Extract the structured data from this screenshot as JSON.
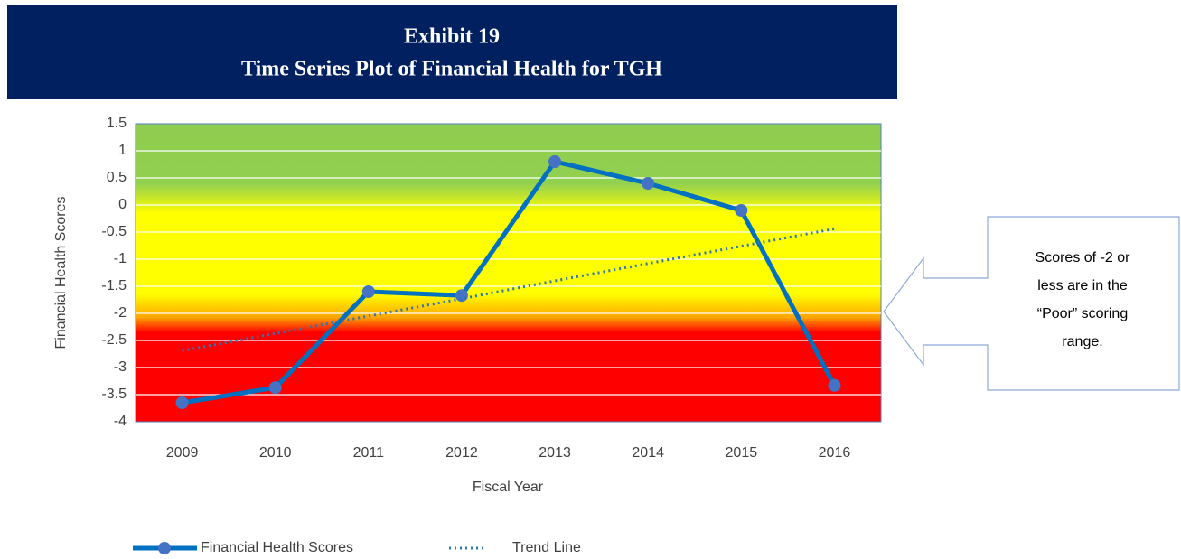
{
  "chart_data": {
    "type": "line",
    "title": "Exhibit 19",
    "subtitle": "Time Series Plot of Financial Health for TGH",
    "x_label": "Fiscal Year",
    "y_label": "Financial Health Scores",
    "categories": [
      "2009",
      "2010",
      "2011",
      "2012",
      "2013",
      "2014",
      "2015",
      "2016"
    ],
    "series": [
      {
        "name": "Financial Health Scores",
        "color": "#4472c4",
        "line_color": "#0070c0",
        "values": [
          -3.65,
          -3.37,
          -1.6,
          -1.67,
          0.8,
          0.4,
          -0.1,
          -3.33
        ]
      },
      {
        "name": "Trend Line",
        "color": "#2e75b6",
        "dotted": true,
        "values": [
          -2.69,
          -2.37,
          -2.05,
          -1.73,
          -1.4,
          -1.08,
          -0.76,
          -0.44
        ]
      }
    ],
    "ylim": [
      -4,
      1.5
    ],
    "yticks": [
      1.5,
      1,
      0.5,
      0,
      -0.5,
      -1,
      -1.5,
      -2,
      -2.5,
      -3,
      -3.5,
      -4
    ],
    "grid": true,
    "legend": "bottom",
    "annotation": [
      "Scores of -2 or",
      "less are in the",
      "“Poor” scoring",
      "range."
    ]
  }
}
